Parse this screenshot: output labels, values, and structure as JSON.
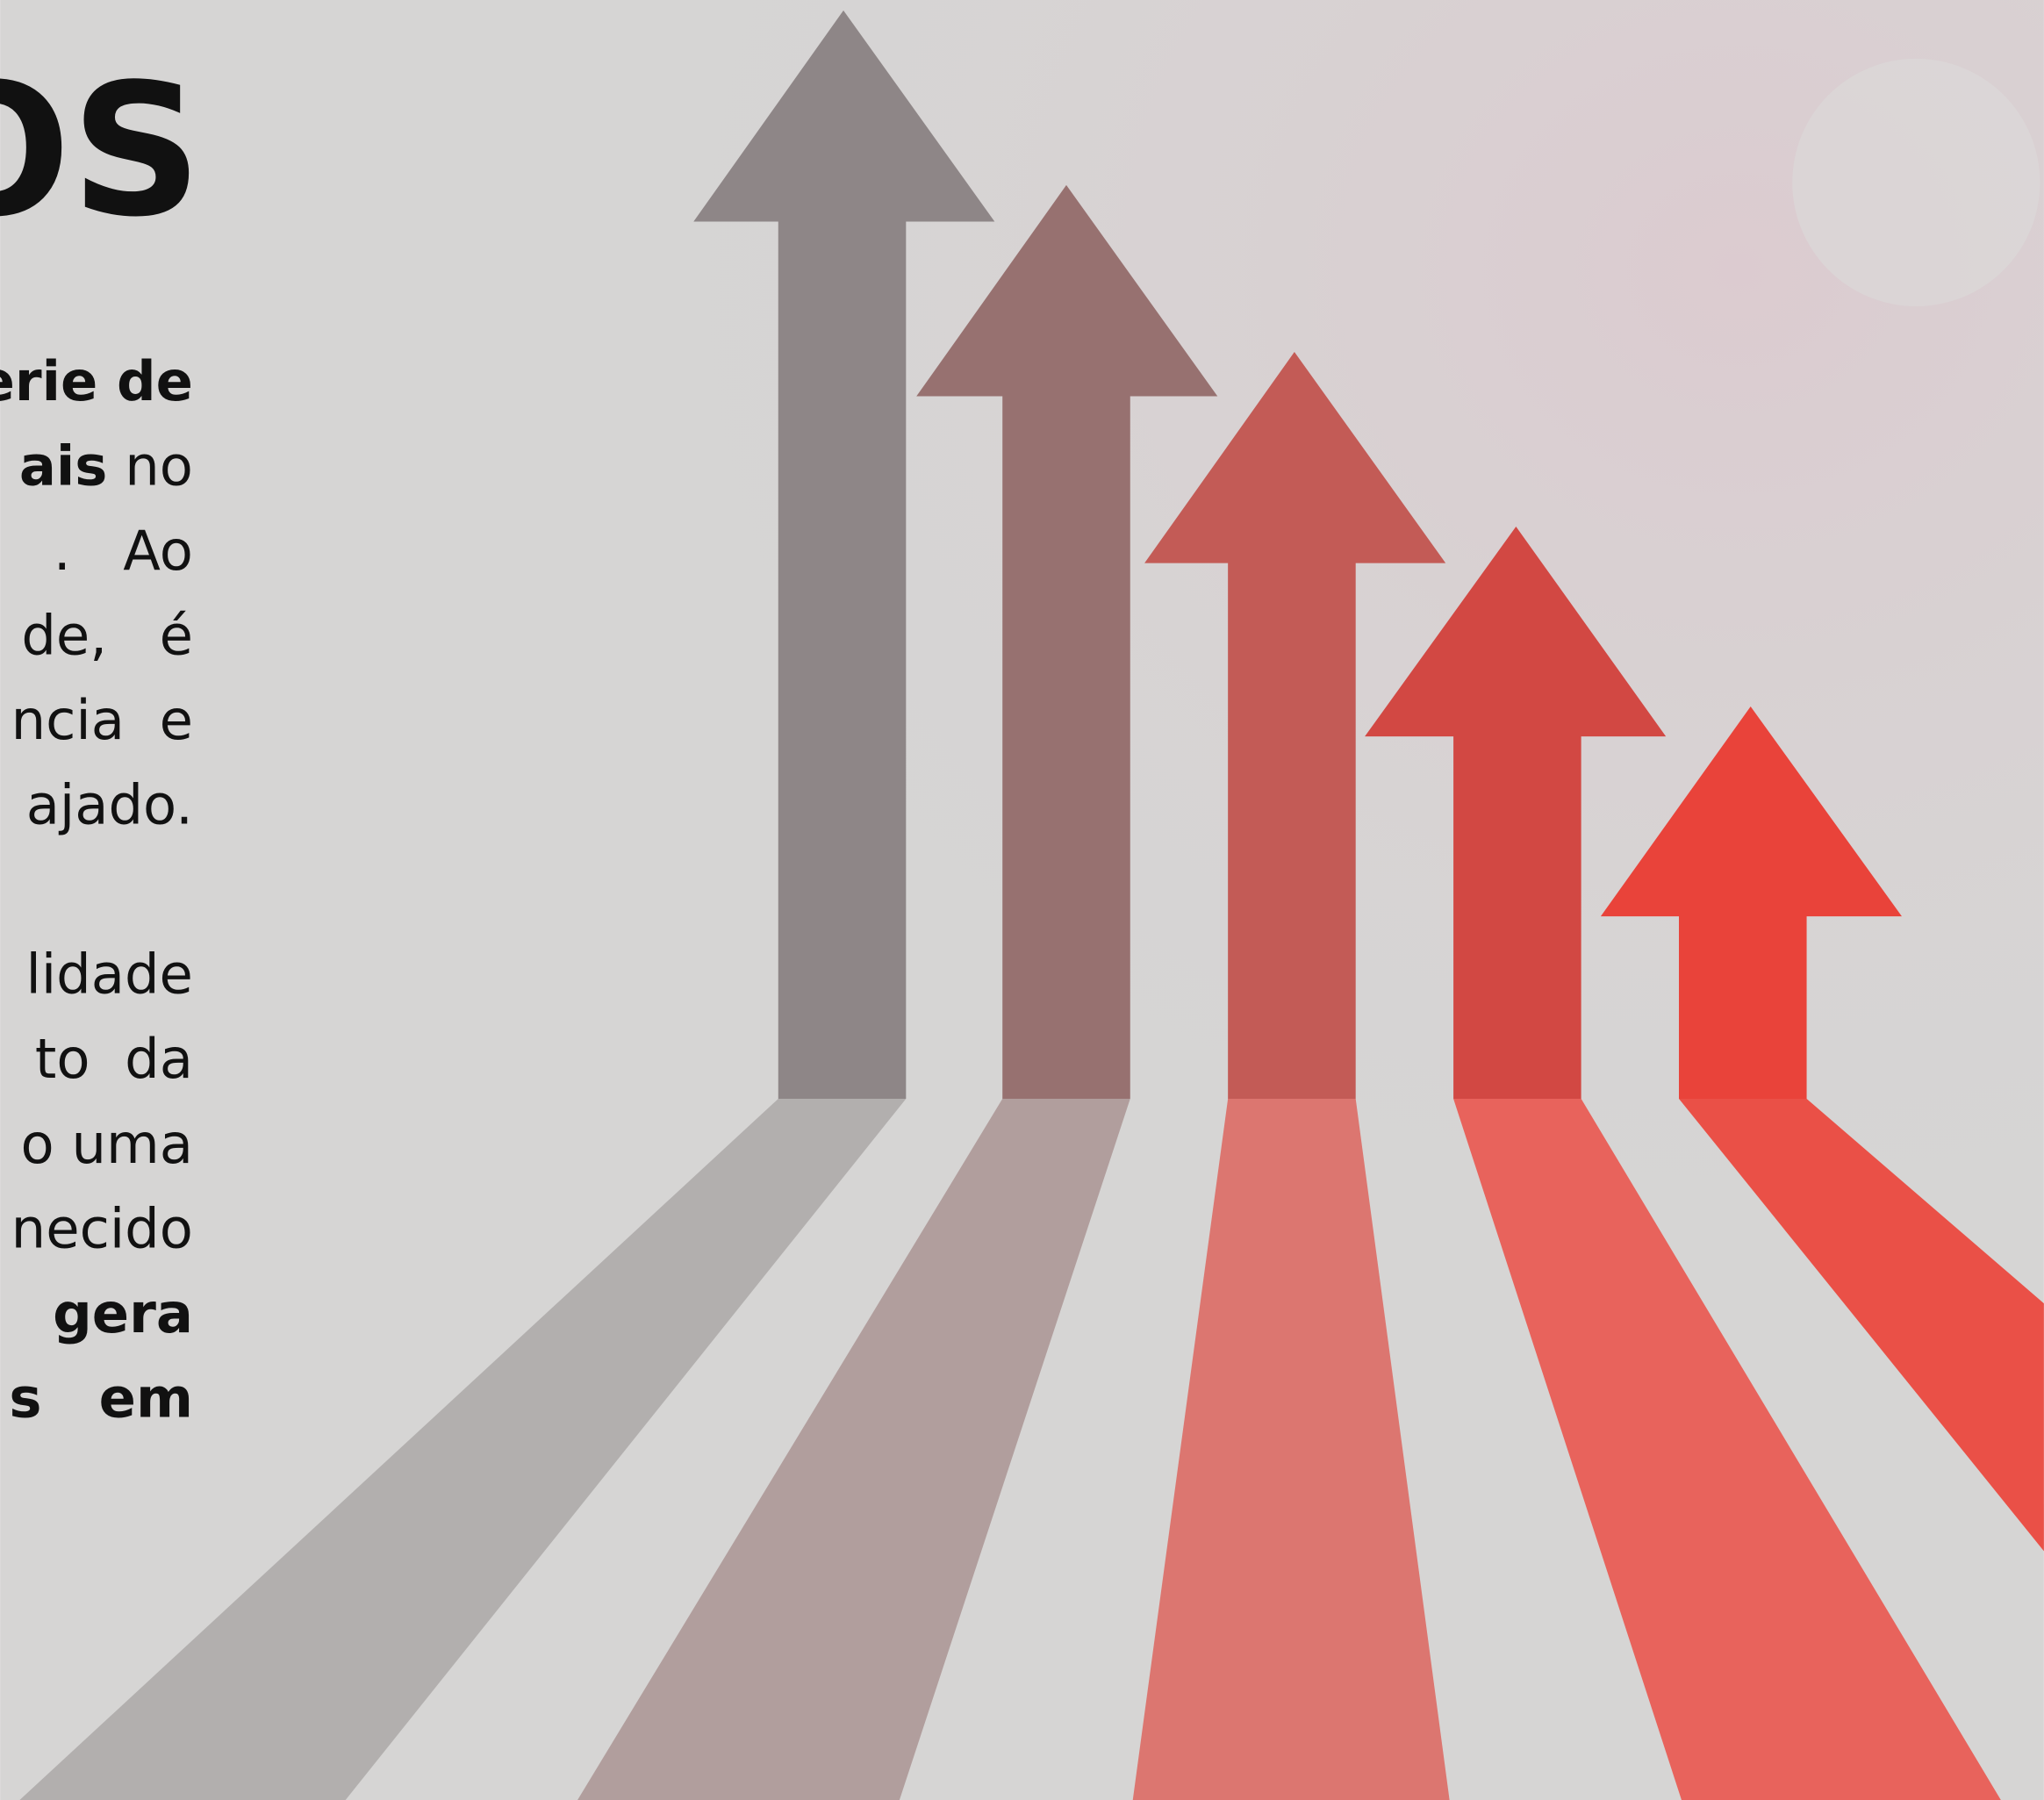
{
  "title": "OS",
  "paragraphs": [
    [
      [
        {
          "text": "erie de",
          "bold": true
        }
      ],
      [
        {
          "text": "ais",
          "bold": true
        },
        {
          "text": " no",
          "bold": false
        }
      ],
      [
        {
          "text": ".   Ao",
          "bold": false
        }
      ],
      [
        {
          "text": "de,   é",
          "bold": false
        }
      ],
      [
        {
          "text": "ncia  e",
          "bold": false
        }
      ],
      [
        {
          "text": "ajado.",
          "bold": false
        }
      ]
    ],
    [
      [
        {
          "text": "lidade",
          "bold": false
        }
      ],
      [
        {
          "text": "to  da",
          "bold": false
        }
      ],
      [
        {
          "text": "o uma",
          "bold": false
        }
      ],
      [
        {
          "text": "necido",
          "bold": false
        }
      ],
      [
        {
          "text": "gera",
          "bold": true
        }
      ],
      [
        {
          "text": "s   em",
          "bold": true
        }
      ]
    ]
  ]
}
